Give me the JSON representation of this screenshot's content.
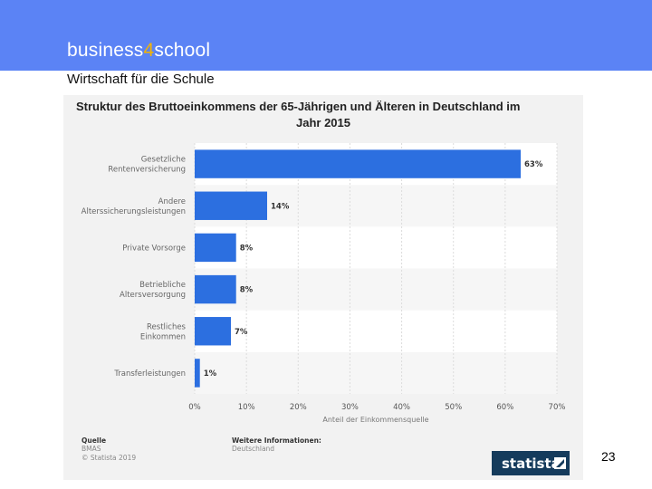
{
  "header": {
    "brand_prefix": "business",
    "brand_digit": "4",
    "brand_suffix": "school",
    "subtitle": "Wirtschaft für die Schule"
  },
  "page_number": "23",
  "colors": {
    "header_band": "#5b83f5",
    "brand_accent": "#f5b400",
    "bar": "#2c6fe0",
    "logo_bg": "#153b5c"
  },
  "chart_data": {
    "type": "bar",
    "orientation": "horizontal",
    "title_lines": [
      "Struktur des Bruttoeinkommens der 65-Jährigen und Älteren in Deutschland im",
      "Jahr 2015"
    ],
    "categories": [
      [
        "Gesetzliche",
        "Rentenversicherung"
      ],
      [
        "Andere",
        "Alterssicherungsleistungen"
      ],
      [
        "Private Vorsorge"
      ],
      [
        "Betriebliche",
        "Altersversorgung"
      ],
      [
        "Restliches",
        "Einkommen"
      ],
      [
        "Transferleistungen"
      ]
    ],
    "values": [
      63,
      14,
      8,
      8,
      7,
      1
    ],
    "value_labels": [
      "63%",
      "14%",
      "8%",
      "8%",
      "7%",
      "1%"
    ],
    "xlim": [
      0,
      70
    ],
    "x_ticks": [
      "0%",
      "10%",
      "20%",
      "30%",
      "40%",
      "50%",
      "60%",
      "70%"
    ],
    "xlabel": "Anteil der Einkommensquelle",
    "grid": true,
    "footer": {
      "source_heading": "Quelle",
      "source_lines": [
        "BMAS",
        "© Statista 2019"
      ],
      "info_heading": "Weitere Informationen:",
      "info_lines": [
        "Deutschland"
      ]
    },
    "logo_text": "statista"
  }
}
